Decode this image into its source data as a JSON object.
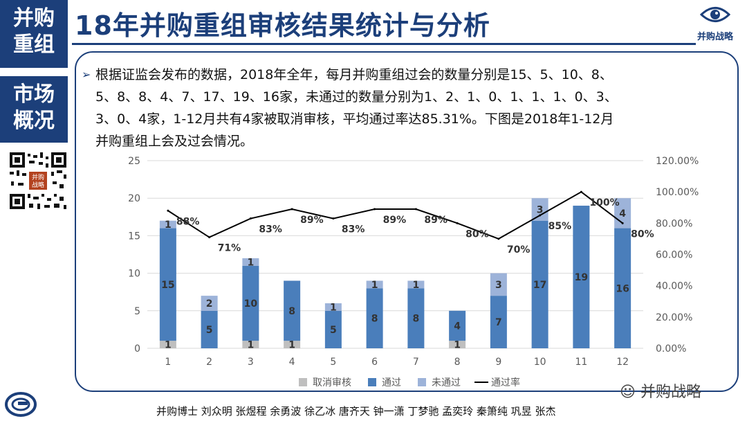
{
  "side": {
    "top": [
      "并购",
      "重组"
    ],
    "mid": [
      "市场",
      "概况"
    ]
  },
  "title": "18年并购重组审核结果统计与分析",
  "logo_text": "并购战略",
  "qr_label": [
    "并购",
    "战略"
  ],
  "bullet_mark": "➢",
  "paragraph": "根据证监会发布的数据，2018年全年，每月并购重组过会的数量分别是15、5、10、8、5、8、8、4、7、17、19、16家，未通过的数量分别为1、2、1、0、1、1、1、0、3、3、0、4家，1-12月共有4家被取消审核，平均通过率达85.31%。下图是2018年1-12月并购重组上会及过会情况。",
  "wechat": "并购战略",
  "footer": "并购博士 刘众明 张煜程 余勇波 徐乙冰 唐齐天 钟一潇 丁梦驰 孟奕玲 秦箫纯 巩昱 张杰",
  "chart_data": {
    "type": "bar",
    "stacked": true,
    "categories": [
      "1",
      "2",
      "3",
      "4",
      "5",
      "6",
      "7",
      "8",
      "9",
      "10",
      "11",
      "12"
    ],
    "series": [
      {
        "name": "取消审核",
        "color": "#bfbfbf",
        "values": [
          1,
          0,
          1,
          1,
          0,
          0,
          0,
          1,
          0,
          0,
          0,
          0
        ]
      },
      {
        "name": "通过",
        "color": "#4a7ebb",
        "values": [
          15,
          5,
          10,
          8,
          5,
          8,
          8,
          4,
          7,
          17,
          19,
          16
        ]
      },
      {
        "name": "未通过",
        "color": "#9db3d9",
        "values": [
          1,
          2,
          1,
          0,
          1,
          1,
          1,
          0,
          3,
          3,
          0,
          4
        ]
      }
    ],
    "line_series": {
      "name": "通过率",
      "color": "#000000",
      "values": [
        88,
        71,
        83,
        89,
        83,
        89,
        89,
        80,
        70,
        85,
        100,
        80
      ],
      "labels": [
        "88%",
        "71%",
        "83%",
        "89%",
        "83%",
        "89%",
        "89%",
        "80%",
        "70%",
        "85%",
        "100%",
        "80%"
      ]
    },
    "ylim": [
      0,
      25
    ],
    "y_ticks": [
      "0",
      "5",
      "10",
      "15",
      "20",
      "25"
    ],
    "y2lim": [
      0,
      120
    ],
    "y2_ticks": [
      "0.00%",
      "20.00%",
      "40.00%",
      "60.00%",
      "80.00%",
      "100.00%",
      "120.00%"
    ],
    "grid": true,
    "legend_position": "bottom"
  }
}
